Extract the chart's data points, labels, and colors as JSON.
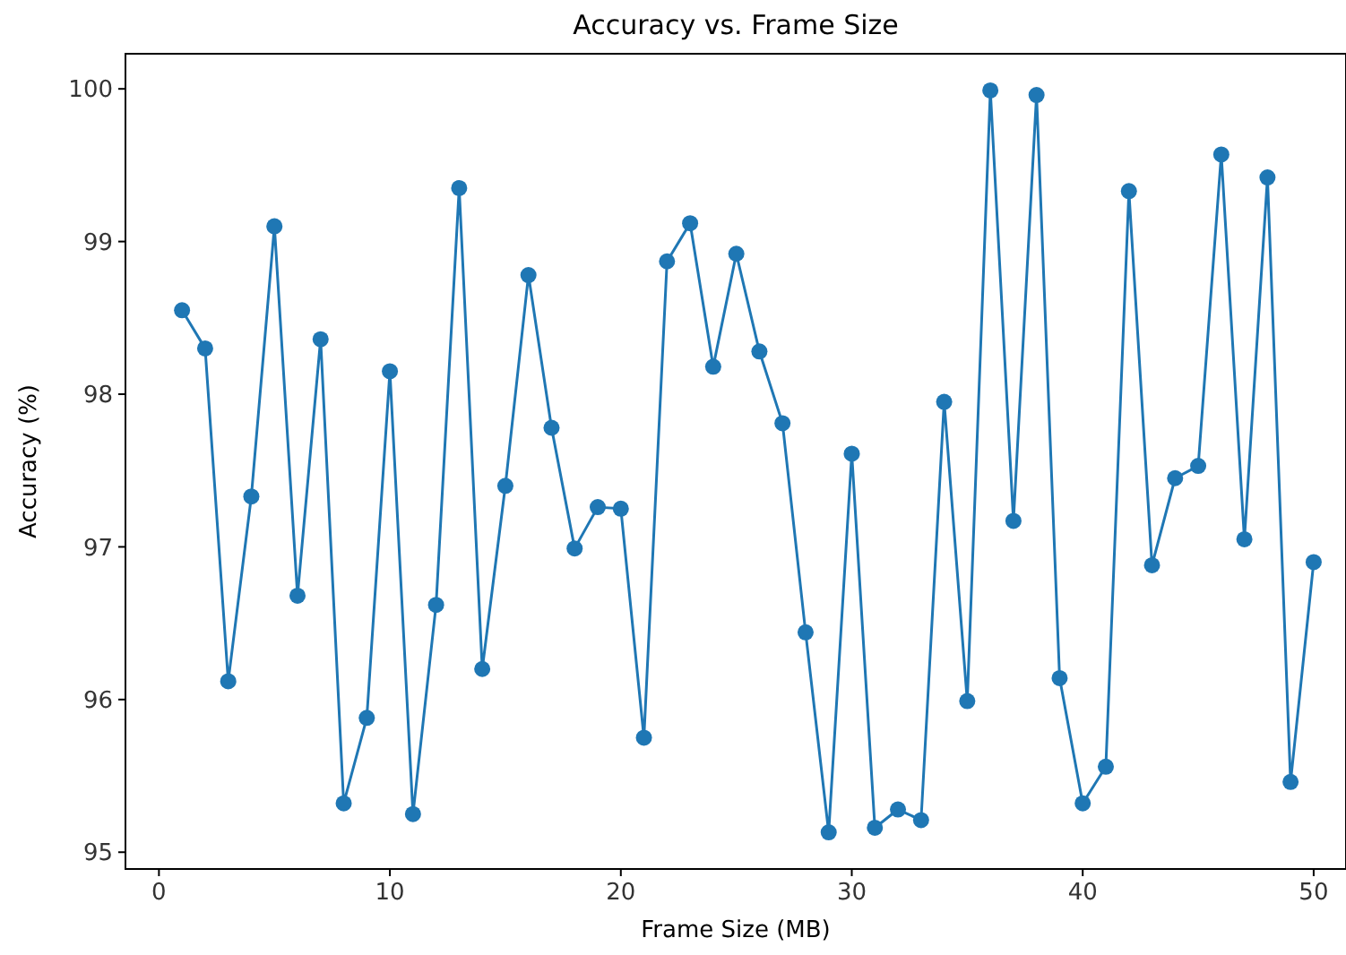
{
  "chart_data": {
    "type": "line",
    "title": "Accuracy vs. Frame Size",
    "xlabel": "Frame Size (MB)",
    "ylabel": "Accuracy (%)",
    "x": [
      1,
      2,
      3,
      4,
      5,
      6,
      7,
      8,
      9,
      10,
      11,
      12,
      13,
      14,
      15,
      16,
      17,
      18,
      19,
      20,
      21,
      22,
      23,
      24,
      25,
      26,
      27,
      28,
      29,
      30,
      31,
      32,
      33,
      34,
      35,
      36,
      37,
      38,
      39,
      40,
      41,
      42,
      43,
      44,
      45,
      46,
      47,
      48,
      49,
      50
    ],
    "series": [
      {
        "color": "#1f77b4",
        "values": [
          98.55,
          98.3,
          96.12,
          97.33,
          99.1,
          96.68,
          98.36,
          95.32,
          95.88,
          98.15,
          95.25,
          96.62,
          99.35,
          96.2,
          97.4,
          98.78,
          97.78,
          96.99,
          97.26,
          97.25,
          95.75,
          98.87,
          99.12,
          98.18,
          98.92,
          98.28,
          97.81,
          96.44,
          95.13,
          97.61,
          95.16,
          95.28,
          95.21,
          97.95,
          95.99,
          99.99,
          97.17,
          99.96,
          96.14,
          95.32,
          95.56,
          99.33,
          96.88,
          97.45,
          97.53,
          99.57,
          97.05,
          99.42,
          95.46,
          96.9
        ]
      }
    ],
    "xlim": [
      -1.45,
      51.4
    ],
    "ylim": [
      94.89,
      100.23
    ],
    "xticks": [
      0,
      10,
      20,
      30,
      40,
      50
    ],
    "yticks": [
      95,
      96,
      97,
      98,
      99,
      100
    ],
    "marker": "circle",
    "line_style": "solid",
    "grid": false
  }
}
